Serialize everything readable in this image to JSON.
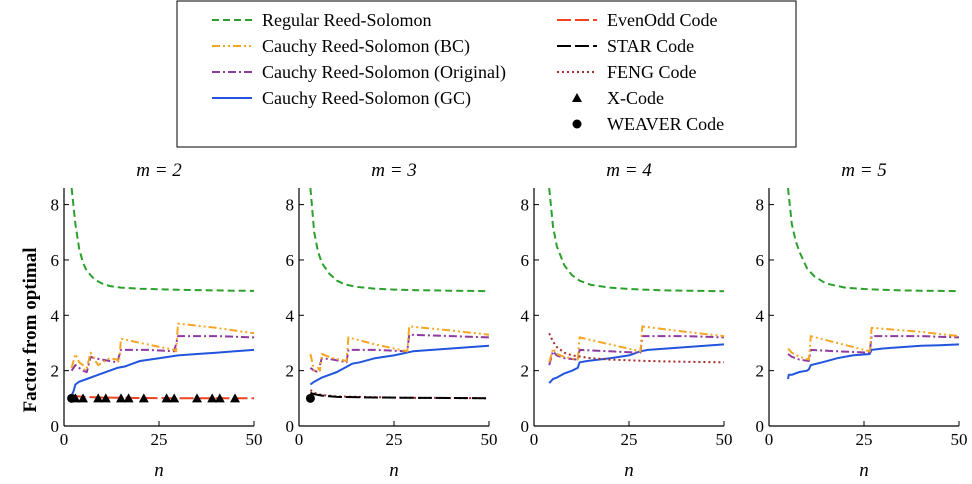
{
  "chart_data": [
    {
      "type": "line",
      "title": "m = 2",
      "xlabel": "n",
      "ylabel": "Factor from optimal",
      "xlim": [
        0,
        50
      ],
      "ylim": [
        0,
        8.6
      ],
      "xticks": [
        0,
        25,
        50
      ],
      "yticks": [
        0,
        2,
        4,
        6,
        8
      ],
      "series": [
        {
          "name": "Regular Reed-Solomon",
          "x": [
            2,
            3,
            4,
            5,
            6,
            8,
            10,
            12,
            15,
            20,
            25,
            30,
            35,
            40,
            45,
            50
          ],
          "y": [
            8.6,
            7.3,
            6.4,
            5.9,
            5.6,
            5.3,
            5.15,
            5.06,
            5.0,
            4.96,
            4.94,
            4.92,
            4.91,
            4.9,
            4.89,
            4.88
          ]
        },
        {
          "name": "Cauchy Reed-Solomon (BC)",
          "x": [
            2,
            3,
            4,
            5,
            5.5,
            6,
            7,
            8,
            8.5,
            9,
            12,
            14,
            14.5,
            15,
            22,
            29,
            29.5,
            30,
            40,
            50
          ],
          "y": [
            2.1,
            2.6,
            2.3,
            2.2,
            2.0,
            2.1,
            2.65,
            2.45,
            2.3,
            2.2,
            2.45,
            2.4,
            2.3,
            3.15,
            2.95,
            2.75,
            2.7,
            3.7,
            3.55,
            3.35
          ]
        },
        {
          "name": "Cauchy Reed-Solomon (Original)",
          "x": [
            2,
            3,
            4,
            5,
            6,
            7,
            8,
            12,
            14,
            15,
            22,
            29,
            30,
            40,
            50
          ],
          "y": [
            2.0,
            2.2,
            2.1,
            2.0,
            1.95,
            2.5,
            2.45,
            2.35,
            2.3,
            2.75,
            2.75,
            2.7,
            3.25,
            3.25,
            3.2
          ]
        },
        {
          "name": "Cauchy Reed-Solomon (GC)",
          "x": [
            2,
            2.5,
            3,
            4,
            6,
            8,
            10,
            12,
            14,
            16,
            18,
            20,
            25,
            30,
            35,
            40,
            45,
            50
          ],
          "y": [
            1.1,
            1.25,
            1.5,
            1.6,
            1.7,
            1.8,
            1.9,
            2.0,
            2.1,
            2.15,
            2.25,
            2.35,
            2.45,
            2.55,
            2.6,
            2.65,
            2.7,
            2.75
          ]
        },
        {
          "name": "EvenOdd Code",
          "x": [
            2,
            5,
            10,
            20,
            30,
            40,
            50
          ],
          "y": [
            1.1,
            1.05,
            1.03,
            1.01,
            1.0,
            1.0,
            1.0
          ]
        },
        {
          "name": "X-Code",
          "x": [
            3,
            5,
            9,
            11,
            15,
            17,
            21,
            27,
            29,
            35,
            39,
            41,
            45
          ],
          "y": [
            1.0,
            1.0,
            1.0,
            1.0,
            1.0,
            1.0,
            1.0,
            1.0,
            1.0,
            1.0,
            1.0,
            1.0,
            1.0
          ]
        },
        {
          "name": "WEAVER Code",
          "x": [
            2
          ],
          "y": [
            1.0
          ]
        }
      ]
    },
    {
      "type": "line",
      "title": "m = 3",
      "xlabel": "n",
      "xlim": [
        0,
        50
      ],
      "ylim": [
        0,
        8.6
      ],
      "xticks": [
        0,
        25,
        50
      ],
      "yticks": [
        0,
        2,
        4,
        6,
        8
      ],
      "series": [
        {
          "name": "Regular Reed-Solomon",
          "x": [
            3,
            4,
            5,
            6,
            8,
            10,
            12,
            15,
            20,
            25,
            30,
            35,
            40,
            45,
            50
          ],
          "y": [
            8.6,
            7.0,
            6.3,
            5.9,
            5.5,
            5.25,
            5.12,
            5.03,
            4.96,
            4.93,
            4.91,
            4.9,
            4.89,
            4.88,
            4.87
          ]
        },
        {
          "name": "Cauchy Reed-Solomon (BC)",
          "x": [
            3,
            4,
            5,
            5.5,
            6,
            9,
            12.5,
            13,
            20,
            28.5,
            29,
            40,
            50
          ],
          "y": [
            2.6,
            2.0,
            2.1,
            2.0,
            2.6,
            2.45,
            2.35,
            3.2,
            2.95,
            2.7,
            3.6,
            3.45,
            3.3
          ]
        },
        {
          "name": "Cauchy Reed-Solomon (Original)",
          "x": [
            3,
            4,
            5,
            6,
            9,
            12.5,
            13,
            20,
            28.5,
            29,
            40,
            50
          ],
          "y": [
            2.1,
            2.0,
            1.95,
            2.45,
            2.4,
            2.3,
            2.75,
            2.75,
            2.7,
            3.3,
            3.25,
            3.2
          ]
        },
        {
          "name": "Cauchy Reed-Solomon (GC)",
          "x": [
            3,
            4,
            6,
            8,
            10,
            12,
            14,
            16,
            20,
            25,
            30,
            35,
            40,
            45,
            50
          ],
          "y": [
            1.5,
            1.6,
            1.75,
            1.85,
            1.95,
            2.1,
            2.25,
            2.3,
            2.45,
            2.55,
            2.7,
            2.75,
            2.8,
            2.85,
            2.9
          ]
        },
        {
          "name": "STAR Code",
          "x": [
            3,
            4,
            6,
            10,
            20,
            30,
            40,
            50
          ],
          "y": [
            1.2,
            1.15,
            1.1,
            1.05,
            1.03,
            1.02,
            1.01,
            1.0
          ]
        },
        {
          "name": "FENG Code",
          "x": [
            3,
            4,
            6,
            10,
            20,
            30,
            40,
            50
          ],
          "y": [
            1.3,
            1.2,
            1.12,
            1.07,
            1.04,
            1.02,
            1.01,
            1.0
          ]
        },
        {
          "name": "WEAVER Code",
          "x": [
            3
          ],
          "y": [
            1.0
          ]
        }
      ]
    },
    {
      "type": "line",
      "title": "m = 4",
      "xlabel": "n",
      "xlim": [
        0,
        50
      ],
      "ylim": [
        0,
        8.6
      ],
      "xticks": [
        0,
        25,
        50
      ],
      "yticks": [
        0,
        2,
        4,
        6,
        8
      ],
      "series": [
        {
          "name": "Regular Reed-Solomon",
          "x": [
            4,
            5,
            6,
            8,
            10,
            12,
            15,
            20,
            25,
            30,
            35,
            40,
            45,
            50
          ],
          "y": [
            8.6,
            7.2,
            6.5,
            5.8,
            5.45,
            5.25,
            5.1,
            5.0,
            4.95,
            4.92,
            4.9,
            4.89,
            4.88,
            4.87
          ]
        },
        {
          "name": "Cauchy Reed-Solomon (BC)",
          "x": [
            4,
            5,
            6,
            8,
            11.5,
            12,
            20,
            28,
            28.5,
            40,
            50
          ],
          "y": [
            2.3,
            2.8,
            2.6,
            2.5,
            2.4,
            3.2,
            2.95,
            2.7,
            3.6,
            3.4,
            3.25
          ]
        },
        {
          "name": "Cauchy Reed-Solomon (Original)",
          "x": [
            4,
            5,
            6,
            8,
            11.5,
            12,
            20,
            28,
            28.5,
            40,
            50
          ],
          "y": [
            2.2,
            2.7,
            2.55,
            2.45,
            2.4,
            2.75,
            2.7,
            2.65,
            3.25,
            3.25,
            3.2
          ]
        },
        {
          "name": "Cauchy Reed-Solomon (GC)",
          "x": [
            4,
            5,
            6,
            8,
            10,
            11.5,
            12,
            14,
            20,
            25,
            28,
            30,
            35,
            40,
            45,
            50
          ],
          "y": [
            1.55,
            1.7,
            1.75,
            1.9,
            2.0,
            2.1,
            2.3,
            2.35,
            2.45,
            2.55,
            2.7,
            2.75,
            2.8,
            2.85,
            2.9,
            2.95
          ]
        },
        {
          "name": "FENG Code",
          "x": [
            4,
            5,
            6,
            8,
            10,
            15,
            20,
            30,
            40,
            50
          ],
          "y": [
            3.35,
            3.05,
            2.85,
            2.65,
            2.55,
            2.45,
            2.4,
            2.35,
            2.32,
            2.3
          ]
        }
      ]
    },
    {
      "type": "line",
      "title": "m = 5",
      "xlabel": "n",
      "xlim": [
        0,
        50
      ],
      "ylim": [
        0,
        8.6
      ],
      "xticks": [
        0,
        25,
        50
      ],
      "yticks": [
        0,
        2,
        4,
        6,
        8
      ],
      "series": [
        {
          "name": "Regular Reed-Solomon",
          "x": [
            5,
            6,
            7,
            8,
            10,
            12,
            15,
            20,
            25,
            30,
            35,
            40,
            45,
            50
          ],
          "y": [
            8.6,
            7.3,
            6.7,
            6.3,
            5.7,
            5.4,
            5.15,
            5.0,
            4.95,
            4.92,
            4.9,
            4.89,
            4.88,
            4.87
          ]
        },
        {
          "name": "Cauchy Reed-Solomon (BC)",
          "x": [
            5,
            6,
            8,
            10.5,
            11,
            18,
            26.5,
            27,
            40,
            50
          ],
          "y": [
            2.8,
            2.65,
            2.5,
            2.4,
            3.25,
            3.0,
            2.7,
            3.55,
            3.4,
            3.25
          ]
        },
        {
          "name": "Cauchy Reed-Solomon (Original)",
          "x": [
            5,
            6,
            8,
            10.5,
            11,
            18,
            26.5,
            27,
            40,
            50
          ],
          "y": [
            2.6,
            2.5,
            2.4,
            2.35,
            2.75,
            2.7,
            2.65,
            3.25,
            3.25,
            3.2
          ]
        },
        {
          "name": "Cauchy Reed-Solomon (GC)",
          "x": [
            5,
            5.2,
            6,
            8,
            10,
            10.5,
            11,
            14,
            18,
            22,
            26.5,
            27,
            30,
            35,
            40,
            45,
            50
          ],
          "y": [
            1.7,
            1.85,
            1.85,
            1.95,
            2.0,
            2.05,
            2.2,
            2.3,
            2.45,
            2.55,
            2.6,
            2.75,
            2.8,
            2.85,
            2.9,
            2.92,
            2.95
          ]
        }
      ]
    }
  ],
  "legend": {
    "entries": [
      {
        "name": "Regular Reed-Solomon",
        "color": "#2ca02c",
        "style": "dash"
      },
      {
        "name": "Cauchy Reed-Solomon (BC)",
        "color": "#f5a623",
        "style": "dashdotdot"
      },
      {
        "name": "Cauchy Reed-Solomon (Original)",
        "color": "#8e3aa0",
        "style": "dashdot"
      },
      {
        "name": "Cauchy Reed-Solomon (GC)",
        "color": "#2255dd",
        "style": "solid"
      },
      {
        "name": "EvenOdd Code",
        "color": "#ee4422",
        "style": "longdash"
      },
      {
        "name": "STAR Code",
        "color": "#000000",
        "style": "longdash"
      },
      {
        "name": "FENG Code",
        "color": "#a52a2a",
        "style": "dot"
      },
      {
        "name": "X-Code",
        "color": "#000000",
        "style": "triangle"
      },
      {
        "name": "WEAVER Code",
        "color": "#000000",
        "style": "circle"
      }
    ]
  }
}
